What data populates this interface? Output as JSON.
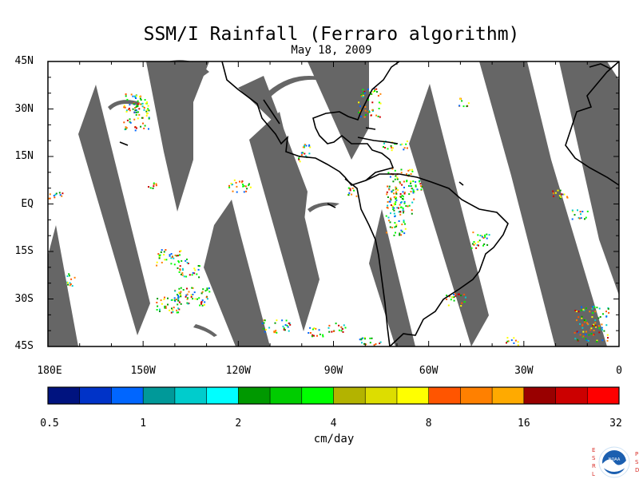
{
  "title": "SSM/I Rainfall (Ferraro algorithm)",
  "date": "May 18, 2009",
  "lat_labels": [
    "45N",
    "30N",
    "15N",
    "EQ",
    "15S",
    "30S",
    "45S"
  ],
  "lon_labels": [
    "180E",
    "150W",
    "120W",
    "90W",
    "60W",
    "30W",
    "0"
  ],
  "colorbar": {
    "units": "cm/day",
    "tick_labels": [
      "0.5",
      "1",
      "2",
      "4",
      "8",
      "16",
      "32"
    ],
    "colors": [
      "#00137f",
      "#0033c8",
      "#0066ff",
      "#009999",
      "#00cccc",
      "#00ffff",
      "#009900",
      "#00cc00",
      "#00ff00",
      "#b3b300",
      "#dddd00",
      "#ffff00",
      "#ff5500",
      "#ff8000",
      "#ffaa00",
      "#990000",
      "#cc0000",
      "#ff0000"
    ]
  },
  "map": {
    "extent": {
      "lon_min": -180,
      "lon_max": 0,
      "lat_min": -45,
      "lat_max": 45
    },
    "no_data_color": "#666666",
    "land_color": "#ffffff"
  },
  "logo": {
    "left_letters": "ESRL",
    "right_letters": "PSD",
    "emblem": "NOAA",
    "accent": "#d9302a"
  }
}
